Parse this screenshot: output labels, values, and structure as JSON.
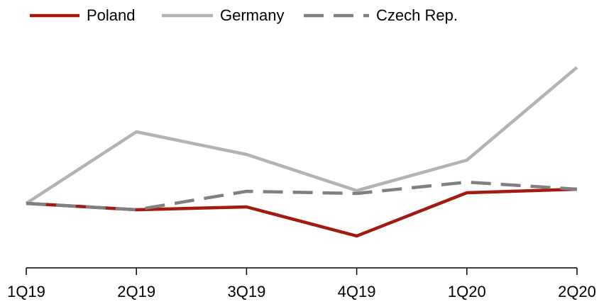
{
  "chart_data": {
    "type": "line",
    "categories": [
      "1Q19",
      "2Q19",
      "3Q19",
      "4Q19",
      "1Q20",
      "2Q20"
    ],
    "series": [
      {
        "name": "Poland",
        "color": "#a31a10",
        "dash": false,
        "values": [
          100,
          99.1,
          99.5,
          95.4,
          101.5,
          102.0
        ]
      },
      {
        "name": "Germany",
        "color": "#b3b3b3",
        "dash": false,
        "values": [
          100,
          110.1,
          106.9,
          101.8,
          106.1,
          119.2
        ]
      },
      {
        "name": "Czech Rep.",
        "color": "#808080",
        "dash": true,
        "values": [
          100,
          99.1,
          101.7,
          101.4,
          103.0,
          102.0
        ]
      }
    ],
    "ylim": [
      91,
      120
    ]
  }
}
